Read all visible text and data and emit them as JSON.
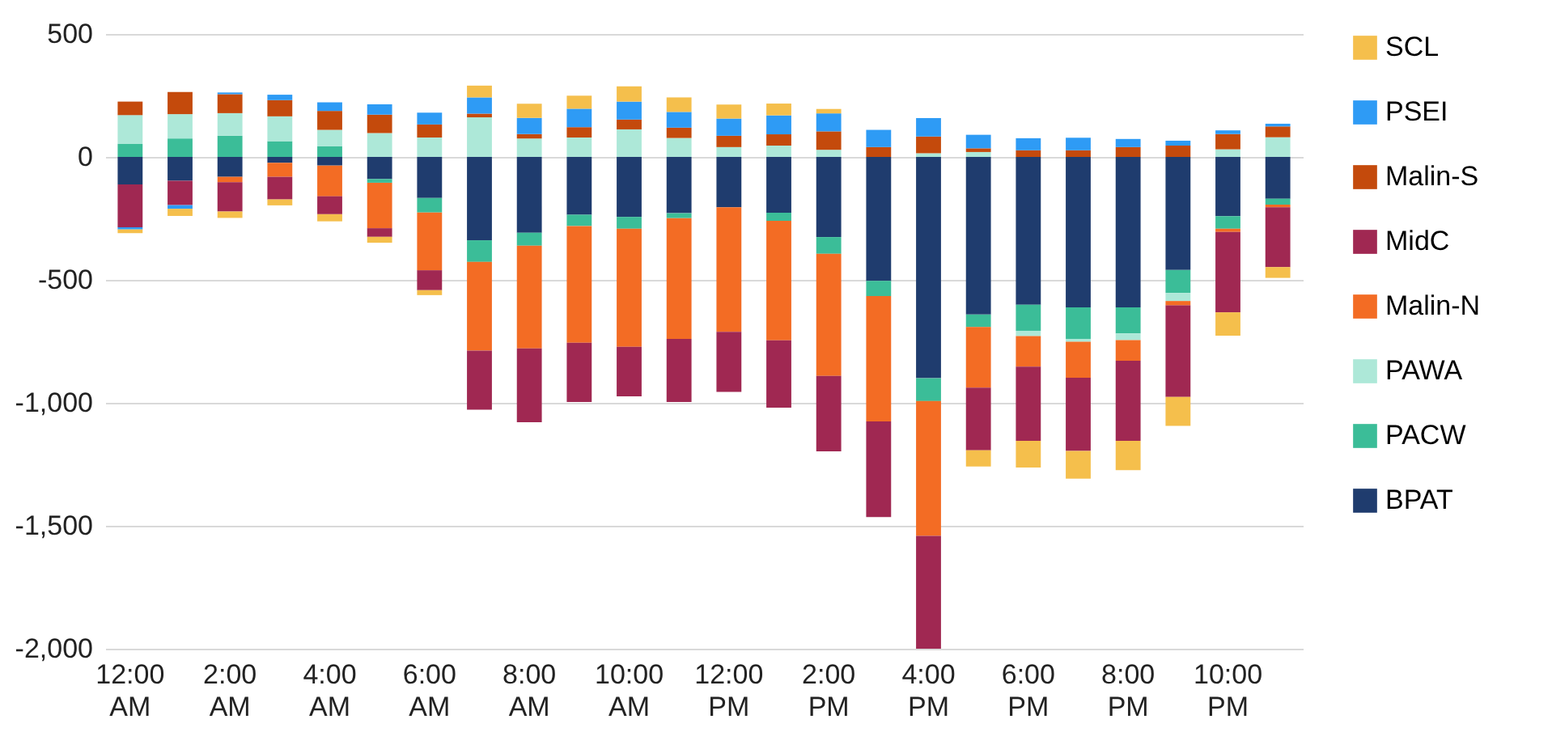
{
  "chart_data": {
    "type": "bar",
    "stacked": true,
    "categories": [
      "12:00 AM",
      null,
      "2:00 AM",
      null,
      "4:00 AM",
      null,
      "6:00 AM",
      null,
      "8:00 AM",
      null,
      "10:00 AM",
      null,
      "12:00 PM",
      null,
      "2:00 PM",
      null,
      "4:00 PM",
      null,
      "6:00 PM",
      null,
      "8:00 PM",
      null,
      "10:00 PM",
      null
    ],
    "series": [
      {
        "name": "BPAT",
        "color": "#1f3c6e",
        "values": [
          -112,
          -97,
          -81,
          -24,
          -35,
          -90,
          -167,
          -339,
          -308,
          -235,
          -244,
          -229,
          -205,
          -227,
          -326,
          -504,
          -900,
          -641,
          -601,
          -612,
          -612,
          -460,
          -241,
          -170
        ]
      },
      {
        "name": "PACW",
        "color": "#3bbd98",
        "values": [
          53,
          75,
          86,
          64,
          44,
          -15,
          -59,
          -88,
          -53,
          -46,
          -48,
          -20,
          0,
          -33,
          -68,
          -62,
          -93,
          -51,
          -106,
          -128,
          -106,
          -93,
          -51,
          -24
        ]
      },
      {
        "name": "PAWA",
        "color": "#ade8d8",
        "values": [
          117,
          99,
          92,
          101,
          66,
          97,
          79,
          161,
          75,
          79,
          112,
          77,
          40,
          46,
          29,
          0,
          15,
          20,
          -22,
          -12,
          -27,
          -33,
          31,
          80
        ]
      },
      {
        "name": "Malin-N",
        "color": "#f36c24",
        "values": [
          0,
          0,
          -22,
          -57,
          -125,
          -185,
          -235,
          -361,
          -418,
          -475,
          -480,
          -491,
          -506,
          -486,
          -497,
          -510,
          -548,
          -246,
          -124,
          -146,
          -84,
          -18,
          -13,
          -11
        ]
      },
      {
        "name": "MidC",
        "color": "#a02852",
        "values": [
          -174,
          -99,
          -119,
          -92,
          -73,
          -35,
          -81,
          -240,
          -300,
          -241,
          -202,
          -257,
          -245,
          -274,
          -306,
          -389,
          -459,
          -255,
          -302,
          -298,
          -326,
          -372,
          -327,
          -243
        ]
      },
      {
        "name": "Malin-S",
        "color": "#c44a0c",
        "values": [
          55,
          90,
          77,
          66,
          77,
          75,
          53,
          15,
          18,
          42,
          40,
          42,
          46,
          46,
          75,
          40,
          68,
          15,
          27,
          27,
          40,
          46,
          62,
          44
        ]
      },
      {
        "name": "PSEI",
        "color": "#2e9bf5",
        "values": [
          -9,
          -15,
          7,
          22,
          35,
          42,
          48,
          66,
          66,
          75,
          73,
          64,
          70,
          77,
          73,
          70,
          75,
          55,
          49,
          51,
          33,
          20,
          15,
          11
        ]
      },
      {
        "name": "SCL",
        "color": "#f5bf4c",
        "values": [
          -15,
          -29,
          -26,
          -24,
          -29,
          -24,
          -20,
          48,
          57,
          53,
          62,
          59,
          57,
          48,
          18,
          0,
          0,
          -66,
          -108,
          -112,
          -119,
          -118,
          -95,
          -44
        ]
      }
    ],
    "ylim": [
      -2000,
      500
    ],
    "yticks": [
      {
        "value": -2000,
        "label": "-2,000"
      },
      {
        "value": -1500,
        "label": "-1,500"
      },
      {
        "value": -1000,
        "label": "-1,000"
      },
      {
        "value": -500,
        "label": "-500"
      },
      0,
      500
    ],
    "grid": "y",
    "legend": "right"
  }
}
